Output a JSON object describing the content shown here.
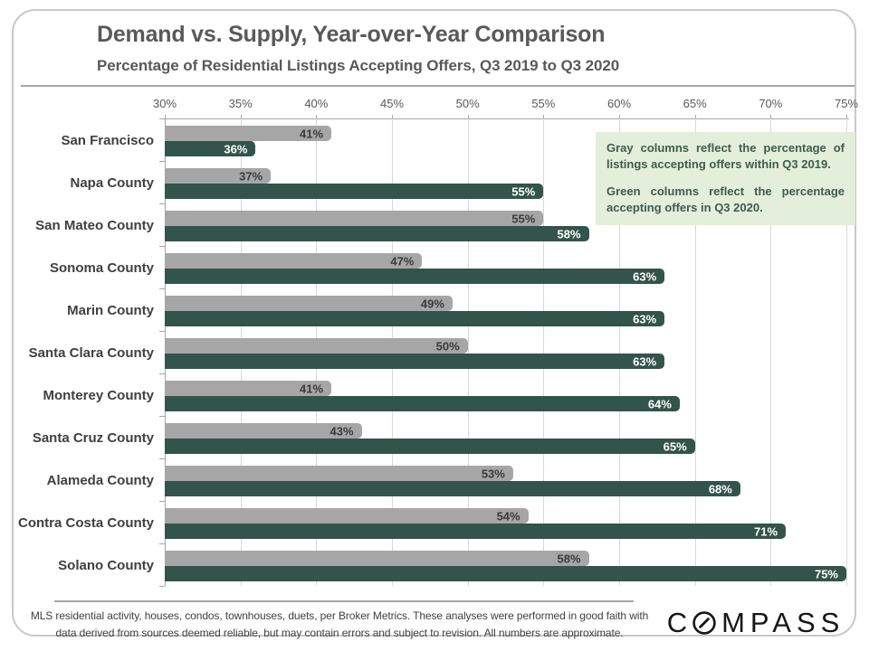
{
  "page": {
    "title": "Demand vs. Supply, Year-over-Year Comparison",
    "subtitle": "Percentage of Residential Listings Accepting Offers, Q3 2019 to Q3 2020"
  },
  "chart_data": {
    "type": "bar",
    "orientation": "horizontal",
    "title": "Demand vs. Supply, Year-over-Year Comparison",
    "subtitle": "Percentage of Residential Listings Accepting Offers, Q3 2019 to Q3 2020",
    "categories": [
      "San Francisco",
      "Napa County",
      "San Mateo County",
      "Sonoma County",
      "Marin County",
      "Santa Clara County",
      "Monterey County",
      "Santa Cruz County",
      "Alameda County",
      "Contra Costa County",
      "Solano County"
    ],
    "series": [
      {
        "name": "Q3 2019",
        "color": "#a6a6a6",
        "values": [
          41,
          37,
          55,
          47,
          49,
          50,
          41,
          43,
          53,
          54,
          58
        ]
      },
      {
        "name": "Q3 2020",
        "color": "#33544a",
        "values": [
          36,
          55,
          58,
          63,
          63,
          63,
          64,
          65,
          68,
          71,
          75
        ]
      }
    ],
    "x_axis": {
      "min": 30,
      "max": 75,
      "step": 5,
      "ticks": [
        "30%",
        "35%",
        "40%",
        "45%",
        "50%",
        "55%",
        "60%",
        "65%",
        "70%",
        "75%"
      ]
    },
    "value_label_suffix": "%",
    "grid": true,
    "legend_position": "none",
    "annotation": {
      "background": "#e3efda",
      "text_color": "#3e5c4f",
      "paragraphs": [
        "Gray columns reflect the percentage of listings accepting offers within Q3 2019.",
        "Green columns reflect the percentage accepting offers in Q3 2020."
      ]
    }
  },
  "footer": {
    "line1": "MLS residential activity, houses, condos, townhouses, duets, per Broker Metrics. These analyses were performed in good faith with",
    "line2": "data derived from sources deemed reliable, but may contain errors and subject to revision.  All numbers are approximate.",
    "logo_before": "C",
    "logo_after": "MPASS"
  }
}
